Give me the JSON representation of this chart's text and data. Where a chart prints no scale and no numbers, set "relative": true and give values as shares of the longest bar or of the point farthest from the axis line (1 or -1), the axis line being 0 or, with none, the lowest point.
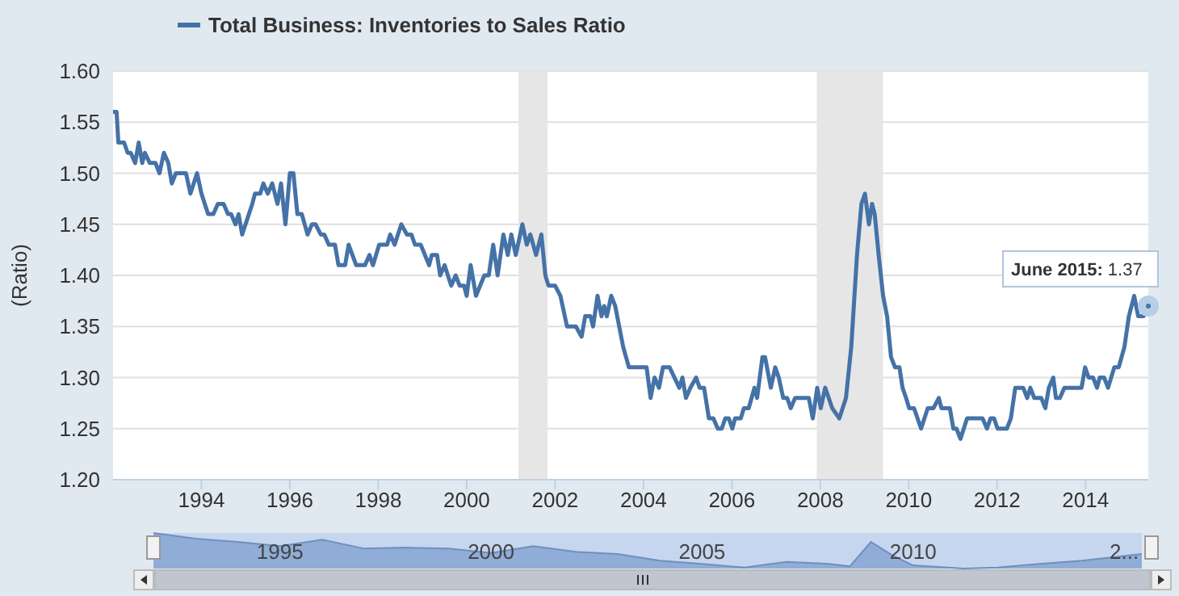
{
  "chart_data": [
    {
      "type": "line",
      "ylabel": "(Ratio)",
      "legend": "top left",
      "grid": "y",
      "marker": "none",
      "line_style": "solid",
      "x": [
        1992.0,
        1992.08,
        1992.12,
        1992.25,
        1992.33,
        1992.4,
        1992.5,
        1992.58,
        1992.66,
        1992.72,
        1992.83,
        1992.96,
        1993.05,
        1993.15,
        1993.25,
        1993.33,
        1993.42,
        1993.65,
        1993.75,
        1993.9,
        1994.0,
        1994.15,
        1994.27,
        1994.37,
        1994.5,
        1994.6,
        1994.67,
        1994.77,
        1994.84,
        1994.92,
        1995.15,
        1995.21,
        1995.33,
        1995.4,
        1995.5,
        1995.6,
        1995.72,
        1995.8,
        1995.9,
        1996.0,
        1996.08,
        1996.17,
        1996.27,
        1996.4,
        1996.5,
        1996.58,
        1996.7,
        1996.78,
        1996.88,
        1997.02,
        1997.1,
        1997.25,
        1997.33,
        1997.5,
        1997.7,
        1997.8,
        1997.88,
        1998.02,
        1998.2,
        1998.27,
        1998.37,
        1998.52,
        1998.65,
        1998.75,
        1998.83,
        1998.96,
        1999.15,
        1999.21,
        1999.33,
        1999.4,
        1999.5,
        1999.65,
        1999.75,
        1999.84,
        1999.94,
        2000.0,
        2000.09,
        2000.21,
        2000.4,
        2000.5,
        2000.6,
        2000.7,
        2000.83,
        2000.93,
        2001.01,
        2001.11,
        2001.26,
        2001.36,
        2001.44,
        2001.57,
        2001.69,
        2001.78,
        2001.85,
        2002.0,
        2002.12,
        2002.27,
        2002.47,
        2002.6,
        2002.68,
        2002.8,
        2002.86,
        2002.96,
        2003.05,
        2003.11,
        2003.17,
        2003.27,
        2003.36,
        2003.54,
        2003.67,
        2004.07,
        2004.16,
        2004.25,
        2004.35,
        2004.44,
        2004.59,
        2004.81,
        2004.88,
        2004.96,
        2005.06,
        2005.19,
        2005.27,
        2005.37,
        2005.48,
        2005.58,
        2005.68,
        2005.77,
        2005.85,
        2005.93,
        2006.01,
        2006.07,
        2006.2,
        2006.27,
        2006.38,
        2006.51,
        2006.57,
        2006.69,
        2006.75,
        2006.88,
        2006.98,
        2007.06,
        2007.16,
        2007.25,
        2007.33,
        2007.43,
        2007.74,
        2007.83,
        2007.93,
        2008.01,
        2008.11,
        2008.27,
        2008.43,
        2008.58,
        2008.7,
        2008.83,
        2008.93,
        2009.01,
        2009.1,
        2009.17,
        2009.23,
        2009.32,
        2009.42,
        2009.51,
        2009.6,
        2009.69,
        2009.79,
        2009.86,
        2009.94,
        2010.01,
        2010.12,
        2010.28,
        2010.43,
        2010.56,
        2010.68,
        2010.74,
        2010.93,
        2011.01,
        2011.08,
        2011.17,
        2011.32,
        2011.67,
        2011.77,
        2011.85,
        2011.93,
        2012.01,
        2012.22,
        2012.31,
        2012.41,
        2012.59,
        2012.68,
        2012.75,
        2012.84,
        2013.0,
        2013.09,
        2013.17,
        2013.27,
        2013.33,
        2013.42,
        2013.52,
        2013.91,
        2013.99,
        2014.07,
        2014.17,
        2014.26,
        2014.32,
        2014.42,
        2014.51,
        2014.65,
        2014.75,
        2014.88,
        2014.98,
        2015.1,
        2015.19,
        2015.31,
        2015.42
      ],
      "series": [
        {
          "name": "Total Business: Inventories to Sales Ratio",
          "color": "#4572a7",
          "values": [
            1.56,
            1.56,
            1.53,
            1.53,
            1.52,
            1.52,
            1.51,
            1.53,
            1.51,
            1.52,
            1.51,
            1.51,
            1.5,
            1.52,
            1.51,
            1.49,
            1.5,
            1.5,
            1.48,
            1.5,
            1.48,
            1.46,
            1.46,
            1.47,
            1.47,
            1.46,
            1.46,
            1.45,
            1.46,
            1.44,
            1.47,
            1.48,
            1.48,
            1.49,
            1.48,
            1.49,
            1.47,
            1.49,
            1.45,
            1.5,
            1.5,
            1.46,
            1.46,
            1.44,
            1.45,
            1.45,
            1.44,
            1.44,
            1.43,
            1.43,
            1.41,
            1.41,
            1.43,
            1.41,
            1.41,
            1.42,
            1.41,
            1.43,
            1.43,
            1.44,
            1.43,
            1.45,
            1.44,
            1.44,
            1.43,
            1.43,
            1.41,
            1.42,
            1.42,
            1.4,
            1.41,
            1.39,
            1.4,
            1.39,
            1.39,
            1.38,
            1.41,
            1.38,
            1.4,
            1.4,
            1.43,
            1.4,
            1.44,
            1.42,
            1.44,
            1.42,
            1.45,
            1.43,
            1.44,
            1.42,
            1.44,
            1.4,
            1.39,
            1.39,
            1.38,
            1.35,
            1.35,
            1.34,
            1.36,
            1.36,
            1.35,
            1.38,
            1.36,
            1.37,
            1.36,
            1.38,
            1.37,
            1.33,
            1.31,
            1.31,
            1.28,
            1.3,
            1.29,
            1.31,
            1.31,
            1.29,
            1.3,
            1.28,
            1.29,
            1.3,
            1.29,
            1.29,
            1.26,
            1.26,
            1.25,
            1.25,
            1.26,
            1.26,
            1.25,
            1.26,
            1.26,
            1.27,
            1.27,
            1.29,
            1.28,
            1.32,
            1.32,
            1.29,
            1.31,
            1.3,
            1.28,
            1.28,
            1.27,
            1.28,
            1.28,
            1.26,
            1.29,
            1.27,
            1.29,
            1.27,
            1.26,
            1.28,
            1.33,
            1.42,
            1.47,
            1.48,
            1.45,
            1.47,
            1.46,
            1.42,
            1.38,
            1.36,
            1.32,
            1.31,
            1.31,
            1.29,
            1.28,
            1.27,
            1.27,
            1.25,
            1.27,
            1.27,
            1.28,
            1.27,
            1.27,
            1.25,
            1.25,
            1.24,
            1.26,
            1.26,
            1.25,
            1.26,
            1.26,
            1.25,
            1.25,
            1.26,
            1.29,
            1.29,
            1.28,
            1.29,
            1.28,
            1.28,
            1.27,
            1.29,
            1.3,
            1.28,
            1.28,
            1.29,
            1.29,
            1.31,
            1.3,
            1.3,
            1.29,
            1.3,
            1.3,
            1.29,
            1.31,
            1.31,
            1.33,
            1.36,
            1.38,
            1.36,
            1.36,
            1.37
          ]
        }
      ],
      "xlim": [
        1992.0,
        2015.42
      ],
      "xticks": [
        1994,
        1996,
        1998,
        2000,
        2002,
        2004,
        2006,
        2008,
        2010,
        2012,
        2014
      ],
      "ylim": [
        1.2,
        1.6
      ],
      "yticks": [
        {
          "value": 1.2,
          "label": "1.20"
        },
        {
          "value": 1.25,
          "label": "1.25"
        },
        {
          "value": 1.3,
          "label": "1.30"
        },
        {
          "value": 1.35,
          "label": "1.35"
        },
        {
          "value": 1.4,
          "label": "1.40"
        },
        {
          "value": 1.45,
          "label": "1.45"
        },
        {
          "value": 1.5,
          "label": "1.50"
        },
        {
          "value": 1.55,
          "label": "1.55"
        },
        {
          "value": 1.6,
          "label": "1.60"
        }
      ],
      "bands": [
        {
          "axis": "x",
          "from": 2001.17,
          "to": 2001.83,
          "color": "#e6e6e6"
        },
        {
          "axis": "x",
          "from": 2007.92,
          "to": 2009.42,
          "color": "#e6e6e6"
        }
      ],
      "annotations": [
        {
          "text": "June 2015: 1.37",
          "x": 2015.42,
          "y": 1.37
        }
      ]
    },
    {
      "type": "area",
      "relative": true,
      "tick_labels": "x",
      "x": [
        1992.0,
        1993.0,
        1994.0,
        1995.0,
        1996.0,
        1997.0,
        1998.0,
        1999.0,
        2000.0,
        2001.0,
        2002.0,
        2003.0,
        2004.0,
        2005.0,
        2006.0,
        2007.0,
        2008.0,
        2008.5,
        2009.0,
        2009.5,
        2010.0,
        2011.2,
        2012.0,
        2013.0,
        2014.0,
        2015.42
      ],
      "series": [
        {
          "color": "#8fadd6",
          "values": [
            1,
            0.84,
            0.75,
            0.63,
            0.81,
            0.56,
            0.59,
            0.56,
            0.44,
            0.63,
            0.47,
            0.41,
            0.22,
            0.13,
            0.03,
            0.19,
            0.13,
            0.06,
            0.75,
            0.38,
            0.09,
            0,
            0.03,
            0.13,
            0.22,
            0.41
          ]
        }
      ],
      "xlim": [
        1992.0,
        2015.42
      ],
      "xticks": [
        1995,
        2000,
        2005,
        2010,
        {
          "value": 2015,
          "label": "2..."
        }
      ]
    }
  ]
}
